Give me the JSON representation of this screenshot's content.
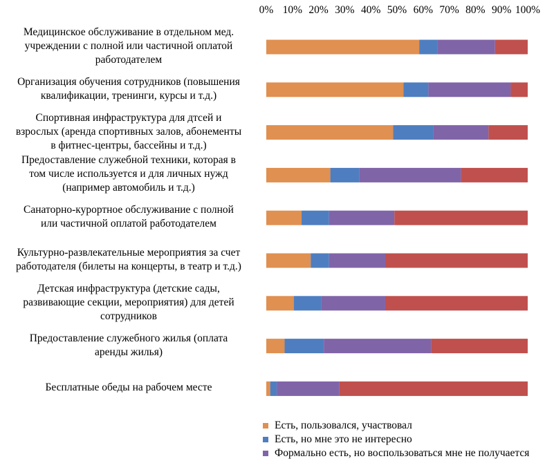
{
  "chart_data": {
    "type": "bar",
    "orientation": "horizontal",
    "stacked": "percent",
    "x_ticks": [
      "0%",
      "10%",
      "20%",
      "30%",
      "40%",
      "50%",
      "60%",
      "70%",
      "80%",
      "90%",
      "100%"
    ],
    "xlim": [
      0,
      100
    ],
    "grid": false,
    "legend_position": "bottom",
    "categories": [
      "Медицинское обслуживание в отдельном мед. учреждении с полной или частичной оплатой работодателем",
      "Организация обучения сотрудников (повышения квалификации, тренинги, курсы и т.д.)",
      "Спортивная инфраструктура  для дтсей и взрослых (аренда спортивных залов, абонементы в фитнес-центры, бассейны и т.д.)",
      "Предоставление служебной техники, которая в том числе используется и для личных нужд (например автомобиль и т.д.)",
      "Санаторно-курортное обслуживание с полной или частичной оплатой работодателем",
      "Культурно-развлекательные  мероприятия за счет работодателя (билеты на концерты, в театр и т.д.)",
      "Детская инфраструктура  (детские сады, развивающие секции, мероприятия) для детей сотрудников",
      "Предоставление служебного жилья (оплата аренды жилья)",
      "Бесплатные обеды на рабочем месте"
    ],
    "category_lines": [
      [
        "Медицинское обслуживание в отдельном мед.",
        "учреждении с полной или частичной оплатой",
        "работодателем"
      ],
      [
        "Организация обучения сотрудников (повышения",
        "квалификации, тренинги, курсы и т.д.)"
      ],
      [
        "Спортивная инфраструктура  для дтсей и",
        "взрослых (аренда спортивных залов, абонементы",
        "в фитнес-центры, бассейны и т.д.)"
      ],
      [
        "Предоставление служебной техники, которая в",
        "том числе используется и для личных нужд",
        "(например автомобиль и т.д.)"
      ],
      [
        "Санаторно-курортное обслуживание с полной",
        "или частичной оплатой работодателем"
      ],
      [
        "Культурно-развлекательные  мероприятия за счет",
        "работодателя (билеты на концерты, в театр и т.д.)"
      ],
      [
        "Детская инфраструктура  (детские сады,",
        "развивающие секции, мероприятия) для детей",
        "сотрудников"
      ],
      [
        "Предоставление служебного жилья (оплата",
        "аренды жилья)"
      ],
      [
        "Бесплатные обеды на рабочем месте"
      ]
    ],
    "series": [
      {
        "name": "Есть, пользовался, участвовал",
        "color": "#E09050",
        "values": [
          58.5,
          52.5,
          48.5,
          24.5,
          13.5,
          17,
          10.5,
          7,
          1.5
        ]
      },
      {
        "name": "Есть, но мне это не интересно",
        "color": "#4E7EC0",
        "values": [
          7,
          9.5,
          15.5,
          11,
          10.5,
          7,
          10.5,
          15,
          2.5
        ]
      },
      {
        "name": "Формально есть, но воспользоваться мне не получается",
        "color": "#8064A8",
        "values": [
          22,
          31.5,
          21,
          39,
          25,
          21.5,
          24.5,
          41,
          24
        ]
      },
      {
        "name": "",
        "color": "#C0504D",
        "values": [
          12.5,
          6.5,
          15,
          25.5,
          51,
          54.5,
          54.5,
          37,
          72
        ]
      }
    ]
  }
}
